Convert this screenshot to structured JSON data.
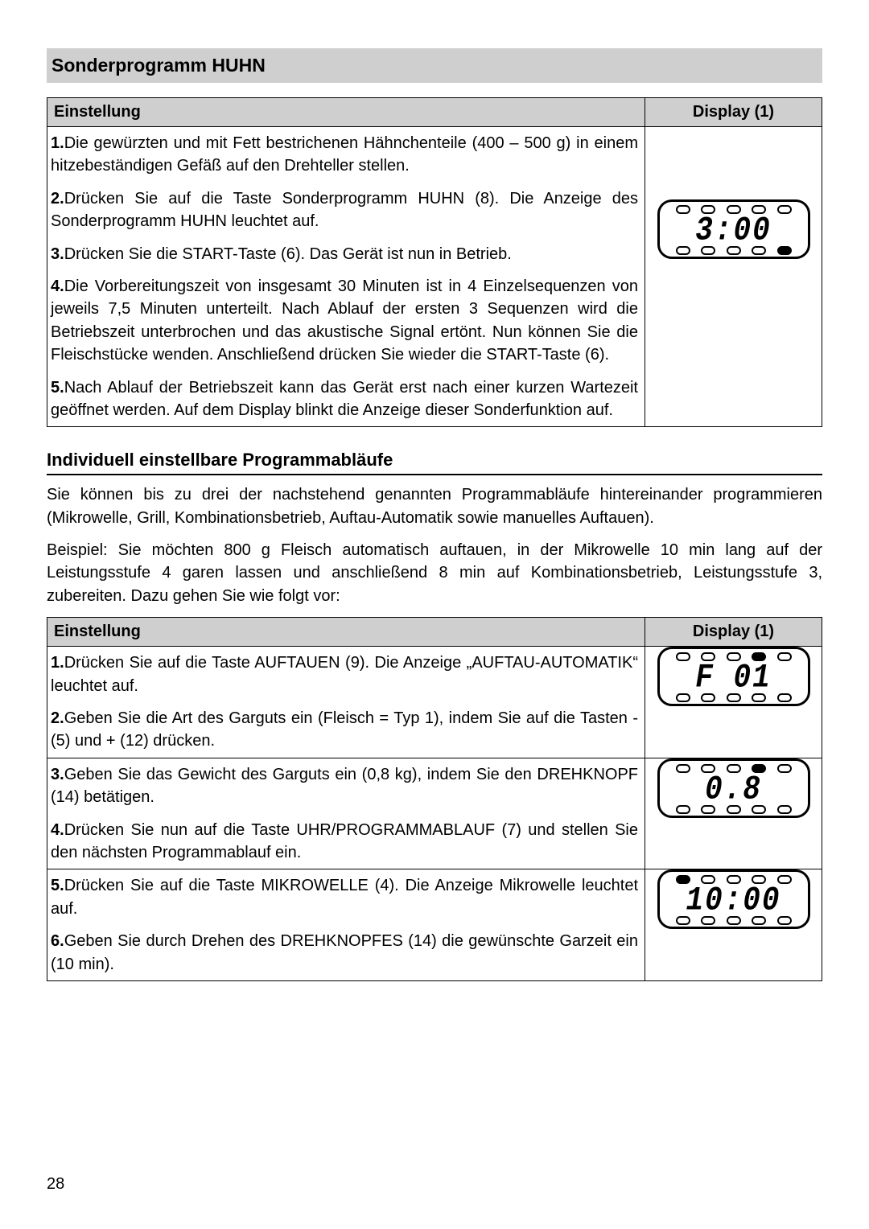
{
  "page_number": "28",
  "colors": {
    "heading_bg": "#cfcfcf",
    "text": "#000000",
    "page_bg": "#ffffff"
  },
  "section1": {
    "heading": "Sonderprogramm HUHN",
    "col_einstellung": "Einstellung",
    "col_display": "Display (1)",
    "steps": [
      {
        "num": "1.",
        "text": "Die gewürzten und mit Fett bestrichenen Hähnchenteile (400 – 500 g) in einem hitzebeständigen Gefäß auf den Drehteller stellen."
      },
      {
        "num": "2.",
        "text": "Drücken Sie auf die Taste Sonderprogramm HUHN (8). Die Anzeige des Sonderprogramm HUHN leuchtet auf."
      },
      {
        "num": "3.",
        "text": "Drücken Sie die START-Taste (6). Das Gerät ist nun in Betrieb."
      },
      {
        "num": "4.",
        "text": "Die Vorbereitungszeit von insgesamt 30 Minuten ist in 4 Einzelsequenzen von jeweils 7,5 Minuten unterteilt. Nach Ablauf der ersten 3 Sequenzen wird die Betriebszeit unterbrochen und das akustische Signal ertönt. Nun können Sie die Fleischstücke wenden. Anschließend drücken Sie wieder die START-Taste (6)."
      },
      {
        "num": "5.",
        "text": "Nach Ablauf der Betriebszeit kann das Gerät erst nach einer kurzen Wartezeit geöffnet werden. Auf dem Display blinkt die Anzeige dieser Sonderfunktion auf."
      }
    ],
    "display": {
      "value": "3:00",
      "top_dots": [
        false,
        false,
        false,
        false,
        false
      ],
      "bottom_dots": [
        false,
        false,
        false,
        false,
        true
      ]
    }
  },
  "section2": {
    "heading": "Individuell einstellbare Programmabläufe",
    "intro1": "Sie können bis zu drei der nachstehend genannten Programmabläufe hintereinander programmieren (Mikrowelle, Grill, Kombinationsbetrieb, Auftau-Automatik sowie manuelles Auftauen).",
    "intro2": "Beispiel: Sie möchten 800 g Fleisch automatisch auftauen, in der Mikrowelle 10 min lang auf der Leistungsstufe 4 garen lassen und anschließend 8 min auf Kombinationsbetrieb, Leistungsstufe 3, zubereiten. Dazu gehen Sie wie folgt vor:",
    "col_einstellung": "Einstellung",
    "col_display": "Display (1)",
    "rows": [
      {
        "steps": [
          {
            "num": "1.",
            "text": "Drücken Sie auf die Taste AUFTAUEN (9). Die Anzeige „AUFTAU-AUTOMATIK“ leuchtet auf."
          },
          {
            "num": "2.",
            "text": "Geben Sie die Art des Garguts ein (Fleisch = Typ 1), indem Sie auf die Tasten - (5) und + (12) drücken."
          }
        ],
        "display": {
          "value": "F  01",
          "top_dots": [
            false,
            false,
            false,
            true,
            false
          ],
          "bottom_dots": [
            false,
            false,
            false,
            false,
            false
          ]
        }
      },
      {
        "steps": [
          {
            "num": "3.",
            "text": "Geben Sie das Gewicht des Garguts ein (0,8 kg), indem Sie den DREHKNOPF (14) betätigen."
          },
          {
            "num": "4.",
            "text": "Drücken Sie nun auf die Taste UHR/PROGRAMMABLAUF (7) und stellen Sie den nächsten Programmablauf ein."
          }
        ],
        "display": {
          "value": "0.8",
          "top_dots": [
            false,
            false,
            false,
            true,
            false
          ],
          "bottom_dots": [
            false,
            false,
            false,
            false,
            false
          ]
        }
      },
      {
        "steps": [
          {
            "num": "5.",
            "text": "Drücken Sie auf die Taste MIKROWELLE (4). Die Anzeige Mikrowelle leuchtet auf."
          },
          {
            "num": "6.",
            "text": "Geben Sie durch Drehen des DREHKNOPFES (14) die gewünschte Garzeit ein (10 min)."
          }
        ],
        "display": {
          "value": "10:00",
          "top_dots": [
            true,
            false,
            false,
            false,
            false
          ],
          "bottom_dots": [
            false,
            false,
            false,
            false,
            false
          ]
        }
      }
    ]
  }
}
